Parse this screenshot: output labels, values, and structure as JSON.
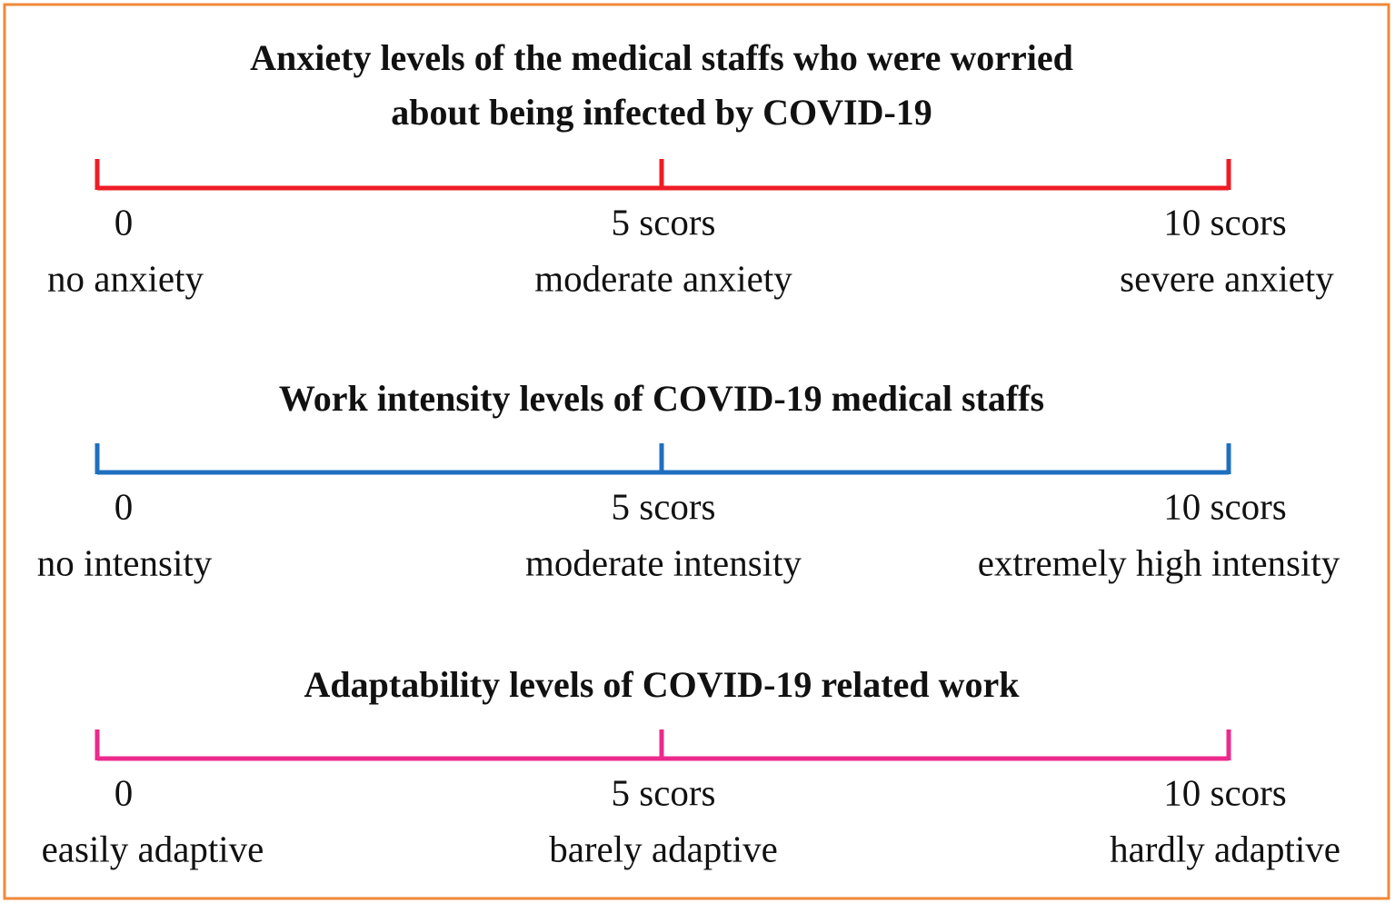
{
  "scales": [
    {
      "title": [
        "Anxiety levels of the medical staffs who were worried",
        "about being infected by COVID-19"
      ],
      "color": "#ee1c25",
      "ticks": [
        {
          "score": "0",
          "label": "no anxiety"
        },
        {
          "score": "5 scors",
          "label": "moderate anxiety"
        },
        {
          "score": "10 scors",
          "label": "severe anxiety"
        }
      ]
    },
    {
      "title": [
        "Work intensity levels of COVID-19 medical staffs"
      ],
      "color": "#1f6fc0",
      "ticks": [
        {
          "score": "0",
          "label": "no intensity"
        },
        {
          "score": "5 scors",
          "label": "moderate intensity"
        },
        {
          "score": "10 scors",
          "label": "extremely high intensity"
        }
      ]
    },
    {
      "title": [
        "Adaptability levels of COVID-19 related work"
      ],
      "color": "#ec2a8c",
      "ticks": [
        {
          "score": "0",
          "label": "easily adaptive"
        },
        {
          "score": "5 scors",
          "label": "barely adaptive"
        },
        {
          "score": "10 scors",
          "label": "hardly adaptive"
        }
      ]
    }
  ]
}
